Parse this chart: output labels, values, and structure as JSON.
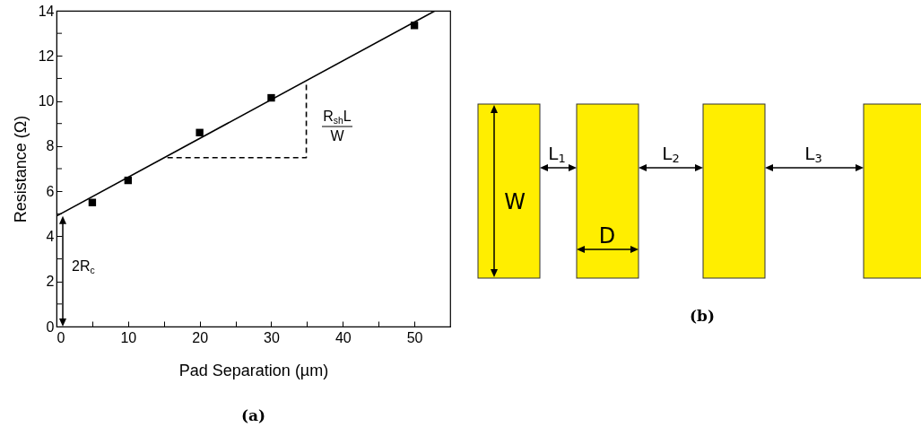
{
  "chart_data": [
    {
      "type": "scatter",
      "xlabel": "Pad Separation (µm)",
      "ylabel": "Resistance (Ω)",
      "xlim": [
        0,
        55
      ],
      "ylim": [
        0,
        14
      ],
      "xticks": [
        0,
        {
          "value": 5,
          "label": null
        },
        10,
        {
          "value": 15,
          "label": null
        },
        20,
        {
          "value": 25,
          "label": null
        },
        30,
        {
          "value": 35,
          "label": null
        },
        40,
        {
          "value": 45,
          "label": null
        },
        50
      ],
      "yticks": [
        0,
        {
          "value": 1,
          "label": null
        },
        2,
        {
          "value": 3,
          "label": null
        },
        4,
        {
          "value": 5,
          "label": null
        },
        6,
        {
          "value": 7,
          "label": null
        },
        8,
        {
          "value": 9,
          "label": null
        },
        10,
        {
          "value": 11,
          "label": null
        },
        12,
        {
          "value": 13,
          "label": null
        },
        14
      ],
      "series": [
        {
          "type": "scatter",
          "color": "#000000",
          "marker": "square",
          "x": [
            5,
            10,
            20,
            30,
            50
          ],
          "values": [
            5.5,
            6.48,
            8.6,
            10.14,
            13.35
          ]
        },
        {
          "type": "line",
          "color": "#000000",
          "line_style": "solid",
          "x": [
            0,
            52.9
          ],
          "values": [
            4.9,
            14
          ]
        },
        {
          "type": "line",
          "color": "#000000",
          "line_style": "dashed",
          "x": [
            15.5,
            34.9,
            34.9
          ],
          "values": [
            7.49,
            7.49,
            10.73
          ]
        }
      ],
      "annotations": [
        "2R$_{c}$",
        "R$_{sh}$L",
        "W",
        "(a)"
      ]
    },
    {
      "type": "other",
      "annotations": [
        "W",
        "D",
        "L$_{1}$",
        "L$_{2}$",
        "L$_{3}$",
        "(b)"
      ]
    }
  ]
}
